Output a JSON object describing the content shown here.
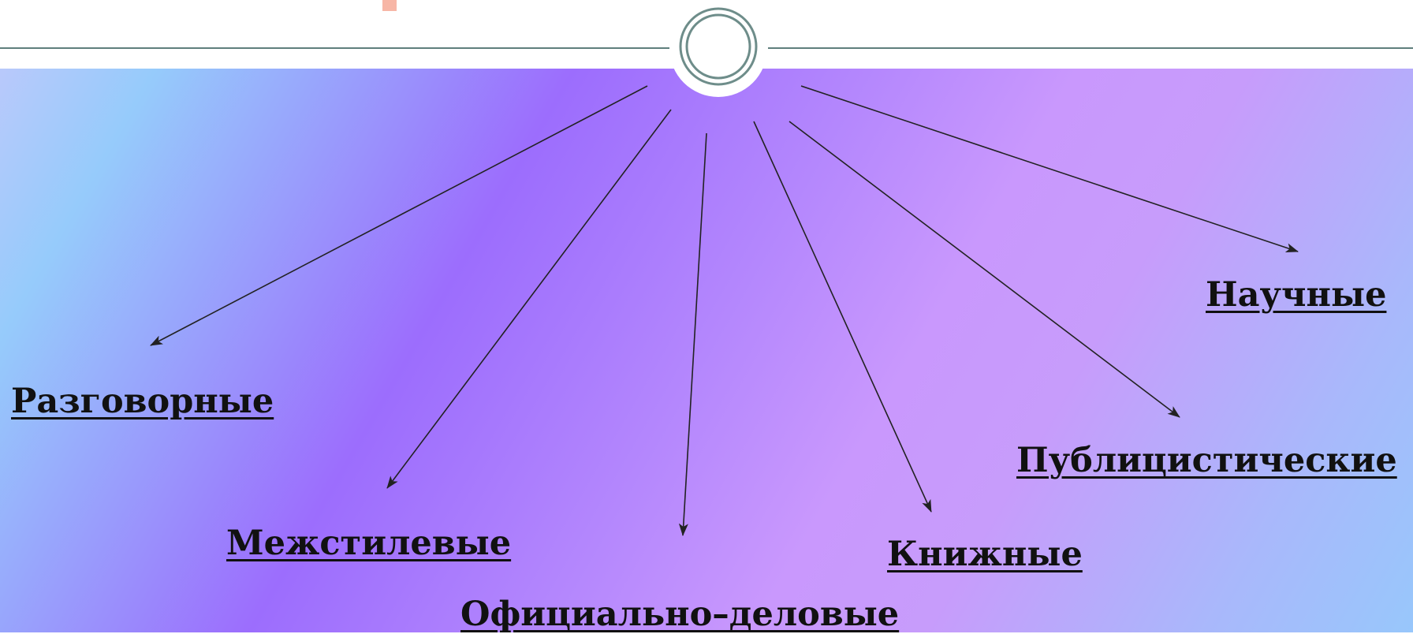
{
  "diagram": {
    "colors": {
      "panel_top_left": "#b9c9fb",
      "panel_center": "#9c6dfd",
      "panel_right": "#c998fd",
      "panel_bottom_right": "#98c7fb",
      "rule_line": "#5f7f7c",
      "accent": "#f7b6a6",
      "arrow": "#222222",
      "text": "#111111"
    },
    "hub": {
      "icon": "double-ring-circle"
    },
    "branches": [
      {
        "id": "razgovornye",
        "label": "Разговорные"
      },
      {
        "id": "mezhstilevye",
        "label": "Межстилевые"
      },
      {
        "id": "oficialno-delovye",
        "label": "Официально–деловые"
      },
      {
        "id": "knizhnye",
        "label": "Книжные"
      },
      {
        "id": "publicisticheskie",
        "label": "Публицистические"
      },
      {
        "id": "nauchnye",
        "label": "Научные"
      }
    ]
  }
}
